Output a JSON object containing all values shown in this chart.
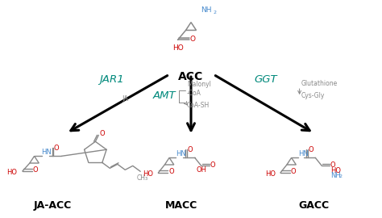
{
  "bg_color": "#ffffff",
  "figsize": [
    4.74,
    2.7
  ],
  "dpi": 100,
  "red": "#cc0000",
  "blue": "#4488cc",
  "gray_struct": "#888888",
  "teal": "#00897B",
  "black": "#000000",
  "acc_label": "ACC",
  "jar1_label": "JAR1",
  "ja_label": "JA",
  "amt_label": "AMT",
  "malonyl_label": "Malonyl\n-CoA",
  "coash_label": "CoA-SH",
  "ggt_label": "GGT",
  "glut_label": "Glutathione",
  "cysgly_label": "Cys-Gly",
  "jaacc_label": "JA-ACC",
  "macc_label": "MACC",
  "gacc_label": "GACC",
  "ch3_label": "CH₃"
}
